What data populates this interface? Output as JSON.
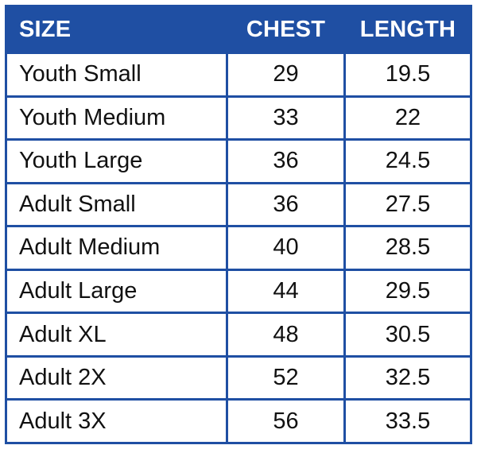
{
  "colors": {
    "header_bg": "#1f4fa3",
    "header_text": "#ffffff",
    "border": "#1f4fa3",
    "cell_bg": "#ffffff",
    "cell_text": "#111111"
  },
  "table": {
    "headers": [
      "SIZE",
      "CHEST",
      "LENGTH"
    ],
    "rows": [
      [
        "Youth Small",
        "29",
        "19.5"
      ],
      [
        "Youth Medium",
        "33",
        "22"
      ],
      [
        "Youth Large",
        "36",
        "24.5"
      ],
      [
        "Adult Small",
        "36",
        "27.5"
      ],
      [
        "Adult Medium",
        "40",
        "28.5"
      ],
      [
        "Adult Large",
        "44",
        "29.5"
      ],
      [
        "Adult XL",
        "48",
        "30.5"
      ],
      [
        "Adult 2X",
        "52",
        "32.5"
      ],
      [
        "Adult 3X",
        "56",
        "33.5"
      ]
    ]
  }
}
